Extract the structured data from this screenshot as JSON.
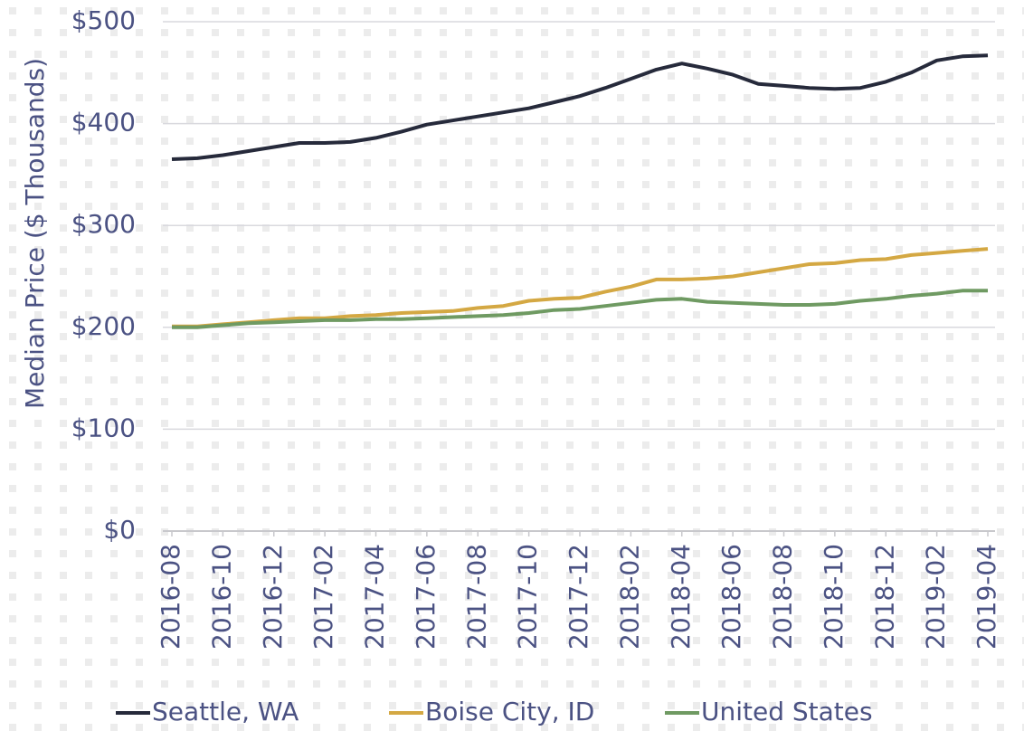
{
  "chart_data": {
    "type": "line",
    "y_label": "Median Price ($ Thousands)",
    "categories": [
      "2016-08",
      null,
      "2016-10",
      null,
      "2016-12",
      null,
      "2017-02",
      null,
      "2017-04",
      null,
      "2017-06",
      null,
      "2017-08",
      null,
      "2017-10",
      null,
      "2017-12",
      null,
      "2018-02",
      null,
      "2018-04",
      null,
      "2018-06",
      null,
      "2018-08",
      null,
      "2018-10",
      null,
      "2018-12",
      null,
      "2019-02",
      null,
      "2019-04"
    ],
    "series": [
      {
        "name": "Seattle, WA",
        "color": "#262a3b",
        "values": [
          365,
          366,
          369,
          373,
          377,
          381,
          381,
          382,
          386,
          392,
          399,
          403,
          407,
          411,
          415,
          421,
          427,
          435,
          444,
          453,
          459,
          454,
          448,
          439,
          437,
          435,
          434,
          435,
          441,
          450,
          462,
          466,
          467
        ]
      },
      {
        "name": "Boise City, ID",
        "color": "#d4a843",
        "values": [
          201,
          201,
          203,
          205,
          207,
          209,
          209,
          211,
          212,
          214,
          215,
          216,
          219,
          221,
          226,
          228,
          229,
          235,
          240,
          247,
          247,
          248,
          250,
          254,
          258,
          262,
          263,
          266,
          267,
          271,
          273,
          275,
          277
        ]
      },
      {
        "name": "United States",
        "color": "#6f9a62",
        "values": [
          200,
          200,
          202,
          204,
          205,
          206,
          207,
          207,
          208,
          208,
          209,
          210,
          211,
          212,
          214,
          217,
          218,
          221,
          224,
          227,
          228,
          225,
          224,
          223,
          222,
          222,
          223,
          226,
          228,
          231,
          233,
          236,
          236
        ]
      }
    ],
    "ylim": [
      0,
      500
    ],
    "yticks": [
      {
        "value": 0,
        "label": "$0"
      },
      {
        "value": 100,
        "label": "$100"
      },
      {
        "value": 200,
        "label": "$200"
      },
      {
        "value": 300,
        "label": "$300"
      },
      {
        "value": 400,
        "label": "$400"
      },
      {
        "value": 500,
        "label": "$500"
      }
    ],
    "grid": true
  }
}
